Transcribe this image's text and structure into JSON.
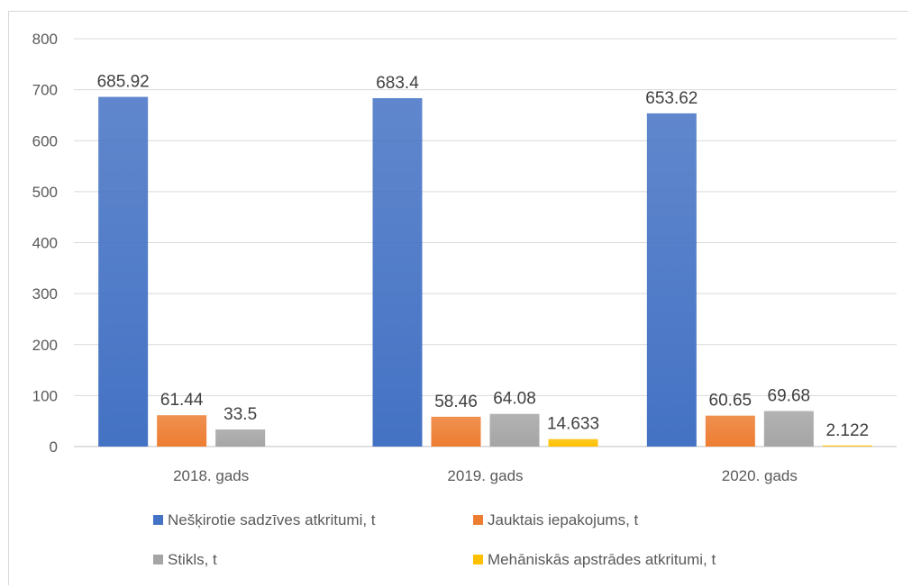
{
  "chart_data": {
    "type": "bar",
    "categories": [
      "2018. gads",
      "2019. gads",
      "2020. gads"
    ],
    "series": [
      {
        "name": "Nešķirotie sadzīves atkritumi, t",
        "color": "#4472C4",
        "values": [
          685.92,
          683.4,
          653.62
        ],
        "labels": [
          "685.92",
          "683.4",
          "653.62"
        ]
      },
      {
        "name": "Jauktais iepakojums, t",
        "color": "#ED7D31",
        "values": [
          61.44,
          58.46,
          60.65
        ],
        "labels": [
          "61.44",
          "58.46",
          "60.65"
        ]
      },
      {
        "name": "Stikls, t",
        "color": "#A5A5A5",
        "values": [
          33.5,
          64.08,
          69.68
        ],
        "labels": [
          "33.5",
          "64.08",
          "69.68"
        ]
      },
      {
        "name": "Mehāniskās apstrādes atkritumi, t",
        "color": "#FFC000",
        "values": [
          null,
          14.633,
          2.122
        ],
        "labels": [
          null,
          "14.633",
          "2.122"
        ]
      }
    ],
    "y_ticks": [
      "0",
      "100",
      "200",
      "300",
      "400",
      "500",
      "600",
      "700",
      "800"
    ],
    "ylim": [
      0,
      800
    ],
    "grid": true,
    "legend_position": "bottom"
  }
}
